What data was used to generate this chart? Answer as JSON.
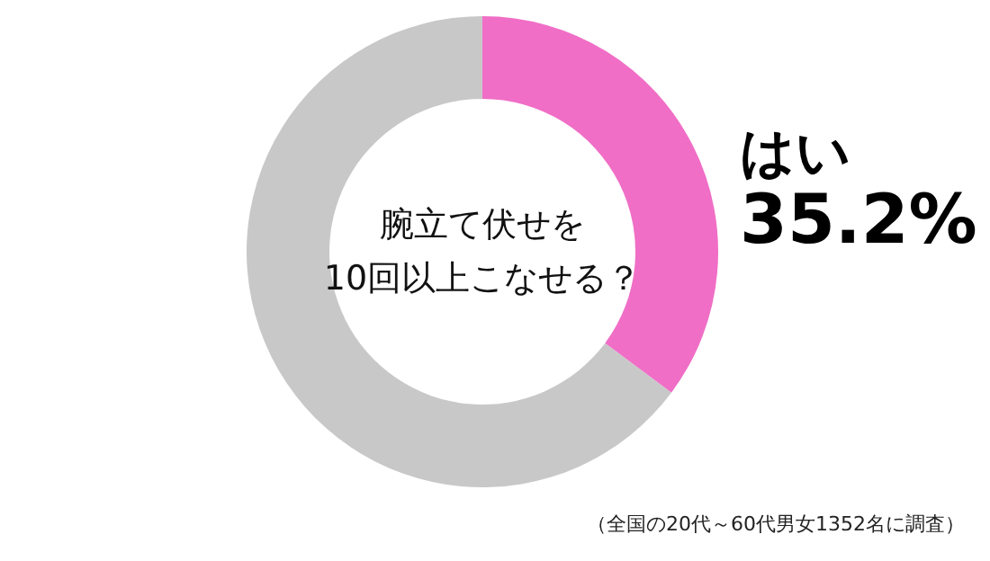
{
  "chart_data": {
    "type": "donut",
    "title": "腕立て伏せを\n10回以上こなせる？",
    "categories": [
      "はい",
      null
    ],
    "values": [
      35.2,
      64.8
    ],
    "value_labels": [
      "35.2%",
      null
    ],
    "colors": [
      "#f06ec6",
      "#c8c8c8"
    ],
    "annotations": [
      "（全国の20代～60代男女1352名に調査）"
    ]
  }
}
